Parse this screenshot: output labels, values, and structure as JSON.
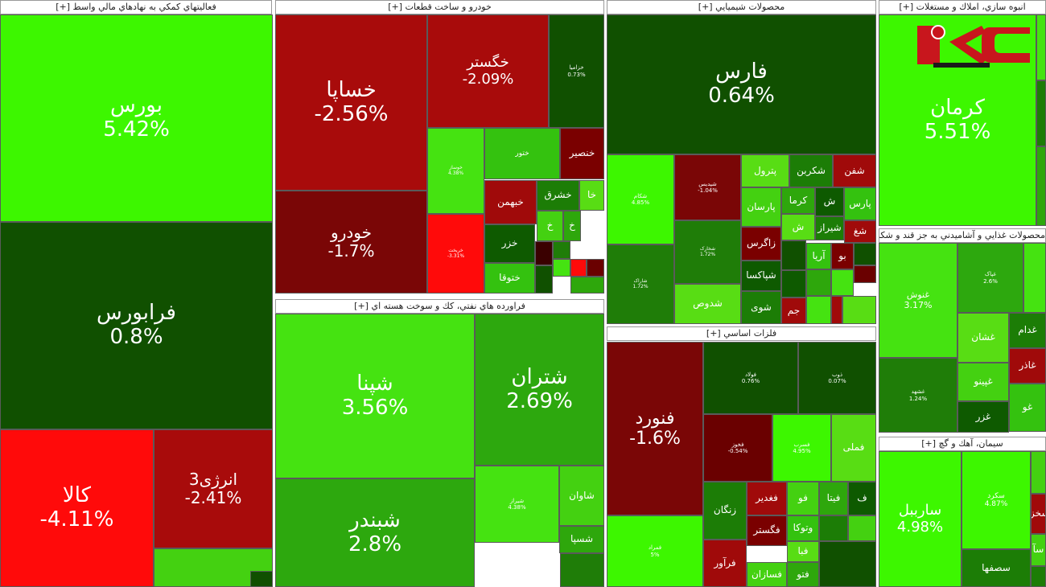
{
  "chart_data": {
    "type": "heatmap",
    "description_scale": "green = positive change, red = negative change (percent)",
    "sectors": [
      {
        "name": "فعاليتهاي كمكي به نهادهاي مالي واسط [+]",
        "tiles": [
          {
            "symbol": "بورس",
            "change": "5.42%"
          },
          {
            "symbol": "فرابورس",
            "change": "0.8%"
          },
          {
            "symbol": "کالا",
            "change": "-4.11%"
          },
          {
            "symbol": "انرژی3",
            "change": "-2.41%"
          }
        ]
      },
      {
        "name": "خودرو و ساخت قطعات [+]",
        "tiles": [
          {
            "symbol": "خساپا",
            "change": "-2.56%"
          },
          {
            "symbol": "خگستر",
            "change": "-2.09%"
          },
          {
            "symbol": "خزامیا",
            "change": "0.73%"
          },
          {
            "symbol": "خودرو",
            "change": "-1.7%"
          },
          {
            "symbol": "خوساز",
            "change": "4.38%"
          },
          {
            "symbol": "خریخت",
            "change": "-3.31%"
          },
          {
            "symbol": "ختور",
            "change": ""
          },
          {
            "symbol": "خنصیر",
            "change": ""
          },
          {
            "symbol": "خا",
            "change": ""
          },
          {
            "symbol": "خشرق",
            "change": ""
          },
          {
            "symbol": "خبهمن",
            "change": ""
          },
          {
            "symbol": "خ",
            "change": ""
          },
          {
            "symbol": "خ",
            "change": ""
          },
          {
            "symbol": "خزر",
            "change": ""
          },
          {
            "symbol": "ختوقا",
            "change": ""
          }
        ]
      },
      {
        "name": "فراورده هاي نفتي، كك و سوخت هسته اي [+]",
        "tiles": [
          {
            "symbol": "شپنا",
            "change": "3.56%"
          },
          {
            "symbol": "شتران",
            "change": "2.69%"
          },
          {
            "symbol": "شبندر",
            "change": "2.8%"
          },
          {
            "symbol": "شیراز",
            "change": "4.38%"
          },
          {
            "symbol": "شاوان",
            "change": ""
          },
          {
            "symbol": "شسپا",
            "change": ""
          }
        ]
      },
      {
        "name": "محصولات شيميايي [+]",
        "tiles": [
          {
            "symbol": "فارس",
            "change": "0.64%"
          },
          {
            "symbol": "شکام",
            "change": "4.85%"
          },
          {
            "symbol": "شپدیس",
            "change": "-1.04%"
          },
          {
            "symbol": "پترول",
            "change": ""
          },
          {
            "symbol": "شکربن",
            "change": ""
          },
          {
            "symbol": "شفن",
            "change": ""
          },
          {
            "symbol": "پارسان",
            "change": ""
          },
          {
            "symbol": "کرما",
            "change": ""
          },
          {
            "symbol": "ش",
            "change": ""
          },
          {
            "symbol": "پارس",
            "change": ""
          },
          {
            "symbol": "زاگرس",
            "change": ""
          },
          {
            "symbol": "ش",
            "change": ""
          },
          {
            "symbol": "شیراز",
            "change": ""
          },
          {
            "symbol": "شغ",
            "change": ""
          },
          {
            "symbol": "شاراک",
            "change": "1.72%"
          },
          {
            "symbol": "شخارک",
            "change": "1.72%"
          },
          {
            "symbol": "شپاکسا",
            "change": ""
          },
          {
            "symbol": "آریا",
            "change": ""
          },
          {
            "symbol": "بو",
            "change": ""
          },
          {
            "symbol": "شدوص",
            "change": ""
          },
          {
            "symbol": "شوی",
            "change": ""
          },
          {
            "symbol": "جم",
            "change": ""
          }
        ]
      },
      {
        "name": "فلزات اساسي [+]",
        "tiles": [
          {
            "symbol": "فنورد",
            "change": "-1.6%"
          },
          {
            "symbol": "فولاد",
            "change": "0.76%"
          },
          {
            "symbol": "ذوب",
            "change": "0.07%"
          },
          {
            "symbol": "فخوز",
            "change": "-0.54%"
          },
          {
            "symbol": "فسرب",
            "change": "4.95%"
          },
          {
            "symbol": "فملی",
            "change": ""
          },
          {
            "symbol": "زنگان",
            "change": ""
          },
          {
            "symbol": "فغدیر",
            "change": ""
          },
          {
            "symbol": "فو",
            "change": ""
          },
          {
            "symbol": "فیتا",
            "change": ""
          },
          {
            "symbol": "ف",
            "change": ""
          },
          {
            "symbol": "وتوکا",
            "change": ""
          },
          {
            "symbol": "فگستر",
            "change": ""
          },
          {
            "symbol": "فبا",
            "change": ""
          },
          {
            "symbol": "فمراد",
            "change": "5%"
          },
          {
            "symbol": "فرآور",
            "change": ""
          },
          {
            "symbol": "فسازان",
            "change": ""
          },
          {
            "symbol": "فتو",
            "change": ""
          }
        ]
      },
      {
        "name": "انبوه سازي، املاك و مستغلات [+]",
        "tiles": [
          {
            "symbol": "کرمان",
            "change": "5.51%"
          }
        ]
      },
      {
        "name": "محصولات غذايي و آشاميدني به جز قند و شكر [+]",
        "tiles": [
          {
            "symbol": "غنوش",
            "change": "3.17%"
          },
          {
            "symbol": "غپاک",
            "change": "2.6%"
          },
          {
            "symbol": "غشان",
            "change": ""
          },
          {
            "symbol": "غدام",
            "change": ""
          },
          {
            "symbol": "غاذر",
            "change": ""
          },
          {
            "symbol": "غپینو",
            "change": ""
          },
          {
            "symbol": "غشهد",
            "change": "1.24%"
          },
          {
            "symbol": "غزر",
            "change": ""
          },
          {
            "symbol": "غو",
            "change": ""
          }
        ]
      },
      {
        "name": "سيمان، آهك و گچ [+]",
        "tiles": [
          {
            "symbol": "سارببل",
            "change": "4.98%"
          },
          {
            "symbol": "سکرد",
            "change": "4.87%"
          },
          {
            "symbol": "سصفها",
            "change": ""
          },
          {
            "symbol": "سخزا",
            "change": ""
          },
          {
            "symbol": "سآ",
            "change": ""
          }
        ]
      }
    ]
  }
}
